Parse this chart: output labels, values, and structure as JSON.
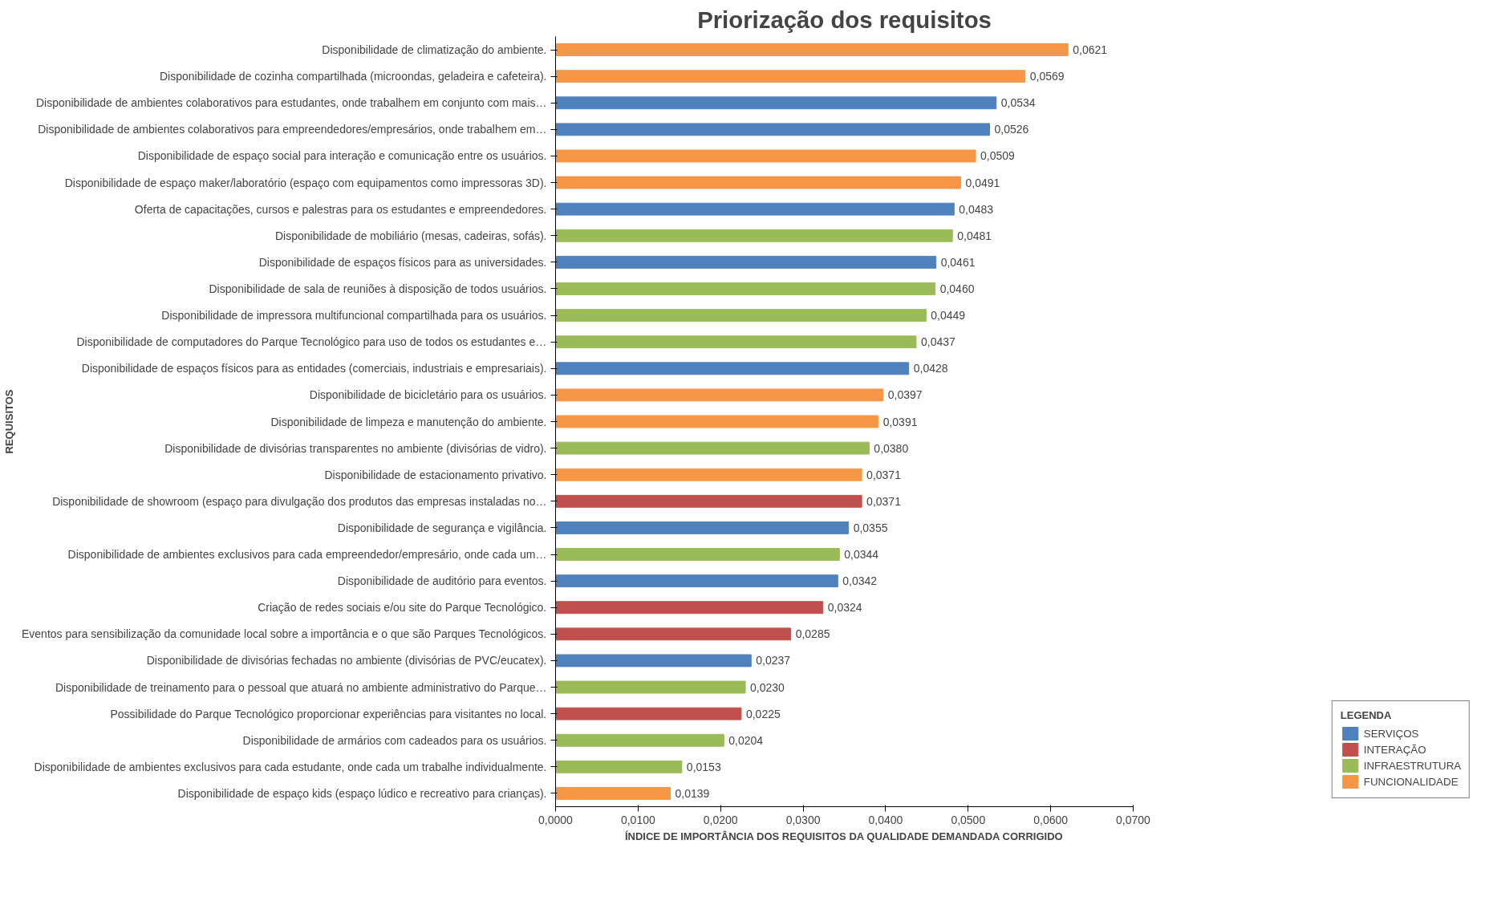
{
  "chart_data": {
    "type": "bar",
    "orientation": "horizontal",
    "title": "Priorização dos requisitos",
    "xlabel": "ÍNDICE DE IMPORTÂNCIA DOS REQUISITOS DA QUALIDADE DEMANDADA CORRIGIDO",
    "ylabel": "REQUISITOS",
    "legend_title": "LEGENDA",
    "legend": "bottom right",
    "grid": false,
    "categories": [
      "Disponibilidade de climatização do ambiente.",
      "Disponibilidade de cozinha compartilhada (microondas, geladeira e cafeteira).",
      "Disponibilidade de ambientes colaborativos para estudantes, onde trabalhem em conjunto com mais…",
      "Disponibilidade de ambientes colaborativos para empreendedores/empresários, onde trabalhem em…",
      "Disponibilidade de espaço social para interação e comunicação entre os usuários.",
      "Disponibilidade de espaço maker/laboratório (espaço com equipamentos como impressoras 3D).",
      "Oferta de capacitações, cursos e palestras para os estudantes e empreendedores.",
      "Disponibilidade de mobiliário (mesas, cadeiras, sofás).",
      "Disponibilidade de espaços físicos para as universidades.",
      "Disponibilidade de sala de reuniões à disposição de todos usuários.",
      "Disponibilidade de impressora multifuncional compartilhada para os usuários.",
      "Disponibilidade de computadores do Parque Tecnológico para uso de todos os estudantes e…",
      "Disponibilidade de espaços físicos para as entidades (comerciais, industriais e empresariais).",
      "Disponibilidade de bicicletário para os usuários.",
      "Disponibilidade de limpeza e manutenção do ambiente.",
      "Disponibilidade de divisórias transparentes no ambiente (divisórias de vidro).",
      "Disponibilidade de estacionamento privativo.",
      "Disponibilidade de showroom (espaço para divulgação dos produtos das empresas instaladas no…",
      "Disponibilidade de segurança e vigilância.",
      "Disponibilidade de ambientes exclusivos para cada empreendedor/empresário, onde cada um…",
      "Disponibilidade de auditório para eventos.",
      "Criação de redes sociais e/ou site do Parque Tecnológico.",
      "Eventos para sensibilização da comunidade local sobre a importância e o que são Parques Tecnológicos.",
      "Disponibilidade de divisórias fechadas no ambiente (divisórias de PVC/eucatex).",
      "Disponibilidade de treinamento para o pessoal que atuará no ambiente administrativo do Parque…",
      "Possibilidade do Parque Tecnológico proporcionar experiências para visitantes no local.",
      "Disponibilidade de armários com cadeados para os usuários.",
      "Disponibilidade de ambientes exclusivos para cada estudante, onde cada um trabalhe individualmente.",
      "Disponibilidade de espaço kids (espaço lúdico e recreativo para crianças)."
    ],
    "xlim": [
      0,
      0.07
    ],
    "xticks": [
      {
        "value": 0,
        "label": "0,0000"
      },
      {
        "value": 0.01,
        "label": "0,0100"
      },
      {
        "value": 0.02,
        "label": "0,0200"
      },
      {
        "value": 0.03,
        "label": "0,0300"
      },
      {
        "value": 0.04,
        "label": "0,0400"
      },
      {
        "value": 0.05,
        "label": "0,0500"
      },
      {
        "value": 0.06,
        "label": "0,0600"
      },
      {
        "value": 0.07,
        "label": "0,0700"
      }
    ],
    "series": [
      {
        "name": "SERVIÇOS",
        "color": "#4f81bd",
        "values": [
          null,
          null,
          0.0534,
          0.0526,
          null,
          null,
          0.0483,
          null,
          0.0461,
          null,
          null,
          null,
          0.0428,
          null,
          null,
          null,
          null,
          null,
          0.0355,
          null,
          0.0342,
          null,
          null,
          0.0237,
          null,
          null,
          null,
          null,
          null
        ],
        "value_labels": [
          null,
          null,
          "0,0534",
          "0,0526",
          null,
          null,
          "0,0483",
          null,
          "0,0461",
          null,
          null,
          null,
          "0,0428",
          null,
          null,
          null,
          null,
          null,
          "0,0355",
          null,
          "0,0342",
          null,
          null,
          "0,0237",
          null,
          null,
          null,
          null,
          null
        ]
      },
      {
        "name": "INTERAÇÃO",
        "color": "#c0504d",
        "values": [
          null,
          null,
          null,
          null,
          null,
          null,
          null,
          null,
          null,
          null,
          null,
          null,
          null,
          null,
          null,
          null,
          null,
          0.0371,
          null,
          null,
          null,
          0.0324,
          0.0285,
          null,
          null,
          0.0225,
          null,
          null,
          null
        ],
        "value_labels": [
          null,
          null,
          null,
          null,
          null,
          null,
          null,
          null,
          null,
          null,
          null,
          null,
          null,
          null,
          null,
          null,
          null,
          "0,0371",
          null,
          null,
          null,
          "0,0324",
          "0,0285",
          null,
          null,
          "0,0225",
          null,
          null,
          null
        ]
      },
      {
        "name": "INFRAESTRUTURA",
        "color": "#9bbb59",
        "values": [
          null,
          null,
          null,
          null,
          null,
          null,
          null,
          0.0481,
          null,
          0.046,
          0.0449,
          0.0437,
          null,
          null,
          null,
          0.038,
          null,
          null,
          null,
          0.0344,
          null,
          null,
          null,
          null,
          0.023,
          null,
          0.0204,
          0.0153,
          null
        ],
        "value_labels": [
          null,
          null,
          null,
          null,
          null,
          null,
          null,
          "0,0481",
          null,
          "0,0460",
          "0,0449",
          "0,0437",
          null,
          null,
          null,
          "0,0380",
          null,
          null,
          null,
          "0,0344",
          null,
          null,
          null,
          null,
          "0,0230",
          null,
          "0,0204",
          "0,0153",
          null
        ]
      },
      {
        "name": "FUNCIONALIDADE",
        "color": "#f79646",
        "values": [
          0.0621,
          0.0569,
          null,
          null,
          0.0509,
          0.0491,
          null,
          null,
          null,
          null,
          null,
          null,
          null,
          0.0397,
          0.0391,
          null,
          0.0371,
          null,
          null,
          null,
          null,
          null,
          null,
          null,
          null,
          null,
          null,
          null,
          0.0139
        ],
        "value_labels": [
          "0,0621",
          "0,0569",
          null,
          null,
          "0,0509",
          "0,0491",
          null,
          null,
          null,
          null,
          null,
          null,
          null,
          "0,0397",
          "0,0391",
          null,
          "0,0371",
          null,
          null,
          null,
          null,
          null,
          null,
          null,
          null,
          null,
          null,
          null,
          "0,0139"
        ]
      }
    ]
  }
}
